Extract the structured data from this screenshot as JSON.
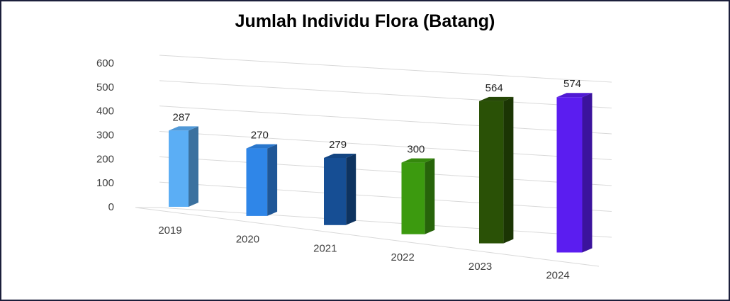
{
  "chart_data": {
    "type": "bar",
    "title": "Jumlah Individu Flora (Batang)",
    "categories": [
      "2019",
      "2020",
      "2021",
      "2022",
      "2023",
      "2024"
    ],
    "values": [
      287,
      270,
      279,
      300,
      564,
      574
    ],
    "data_labels": [
      "287",
      "270",
      "279",
      "300",
      "564",
      "574"
    ],
    "colors": [
      "#5baef5",
      "#2f86e8",
      "#164e94",
      "#3c9a0f",
      "#2a5106",
      "#5b1df0"
    ],
    "yticks": [
      "0",
      "100",
      "200",
      "300",
      "400",
      "500",
      "600"
    ],
    "ylim": [
      0,
      600
    ],
    "xlabel": "",
    "ylabel": "",
    "grid": true,
    "legend": "none",
    "style": "3d-column"
  }
}
